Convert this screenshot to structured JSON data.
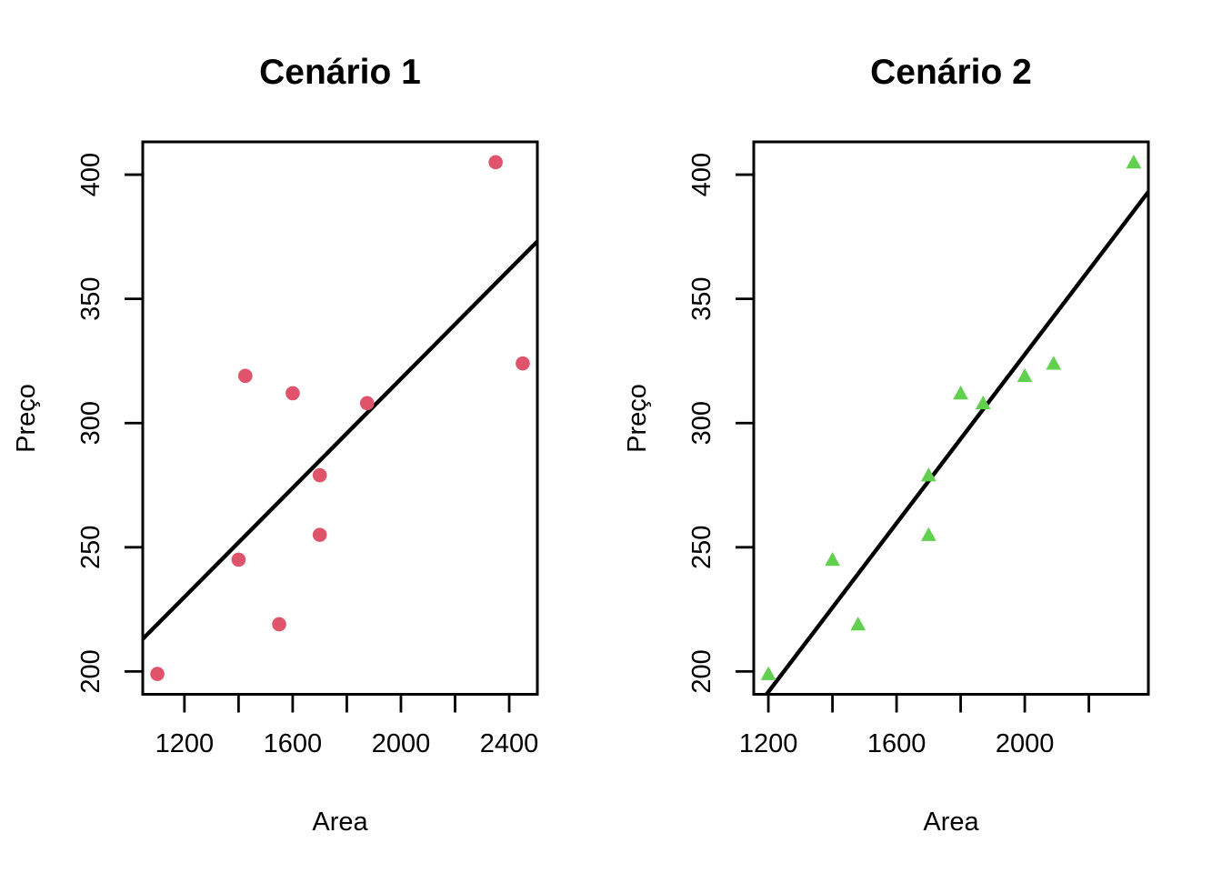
{
  "figure": {
    "background": "#ffffff",
    "text_color": "#000000"
  },
  "chart_data": [
    {
      "type": "scatter",
      "title": "Cenário 1",
      "xlabel": "Area",
      "ylabel": "Preço",
      "marker": "circle",
      "marker_color": "#DF536B",
      "line_color": "#000000",
      "x": [
        1100,
        1400,
        1425,
        1550,
        1600,
        1700,
        1700,
        1875,
        2350,
        2450
      ],
      "y": [
        199,
        245,
        319,
        219,
        312,
        255,
        279,
        308,
        405,
        324
      ],
      "xlim": [
        1046,
        2504
      ],
      "ylim": [
        190.8,
        413.2
      ],
      "xticks": [
        1200,
        1400,
        1600,
        1800,
        2000,
        2200,
        2400
      ],
      "xtick_labels": [
        "1200",
        "",
        "1600",
        "",
        "2000",
        "",
        "2400"
      ],
      "yticks": [
        200,
        250,
        300,
        350,
        400
      ],
      "ytick_labels": [
        "200",
        "250",
        "300",
        "350",
        "400"
      ],
      "fit_line": {
        "slope": 0.1098,
        "intercept": 98.2
      },
      "grid": false,
      "legend": null
    },
    {
      "type": "scatter",
      "title": "Cenário 2",
      "xlabel": "Area",
      "ylabel": "Preço",
      "marker": "triangle",
      "marker_color": "#61D04F",
      "line_color": "#000000",
      "x": [
        1200,
        1400,
        1480,
        1700,
        1700,
        1800,
        1870,
        2000,
        2090,
        2340
      ],
      "y": [
        199,
        245,
        219,
        255,
        279,
        312,
        308,
        319,
        324,
        405
      ],
      "xlim": [
        1154.4,
        2385.6
      ],
      "ylim": [
        190.8,
        413.2
      ],
      "xticks": [
        1200,
        1400,
        1600,
        1800,
        2000,
        2200
      ],
      "xtick_labels": [
        "1200",
        "",
        "1600",
        "",
        "2000",
        ""
      ],
      "yticks": [
        200,
        250,
        300,
        350,
        400
      ],
      "ytick_labels": [
        "200",
        "250",
        "300",
        "350",
        "400"
      ],
      "fit_line": {
        "slope": 0.1698,
        "intercept": -12.0
      },
      "grid": false,
      "legend": null
    }
  ]
}
